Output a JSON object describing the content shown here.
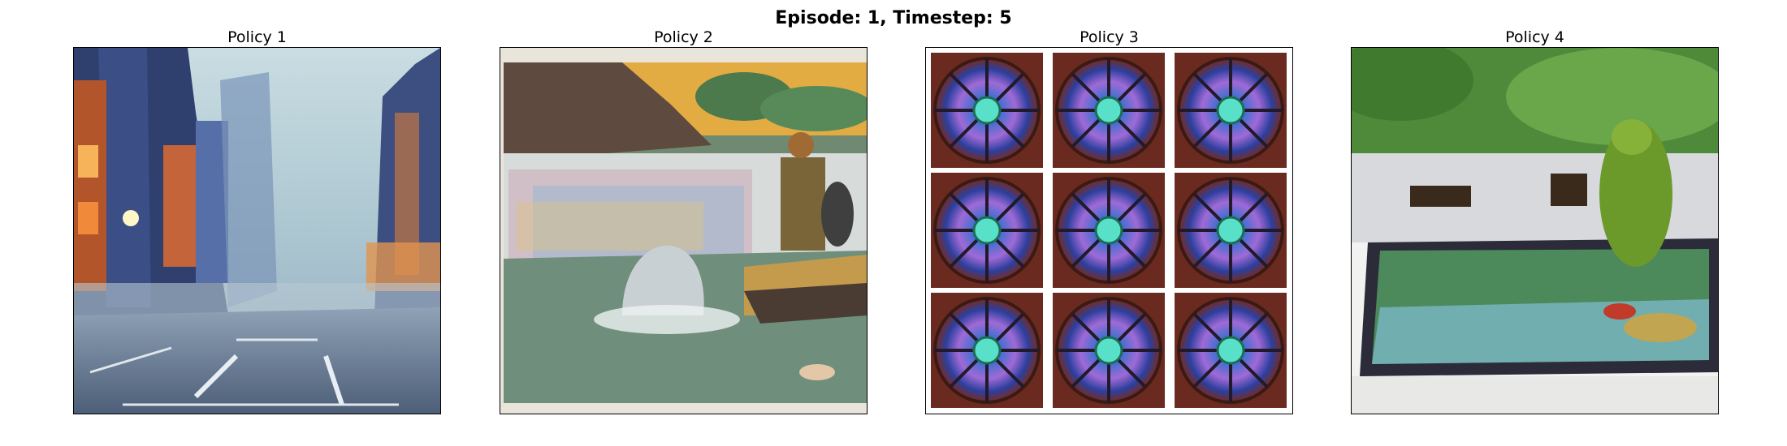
{
  "figure": {
    "title": "Episode: 1, Timestep: 5"
  },
  "panels": [
    {
      "title": "Policy 1",
      "image": "foggy-city-street"
    },
    {
      "title": "Policy 2",
      "image": "painted-waterfall-scene"
    },
    {
      "title": "Policy 3",
      "image": "stained-glass-rose-window-grid"
    },
    {
      "title": "Policy 4",
      "image": "zen-garden-pond-with-moss-rock"
    }
  ]
}
